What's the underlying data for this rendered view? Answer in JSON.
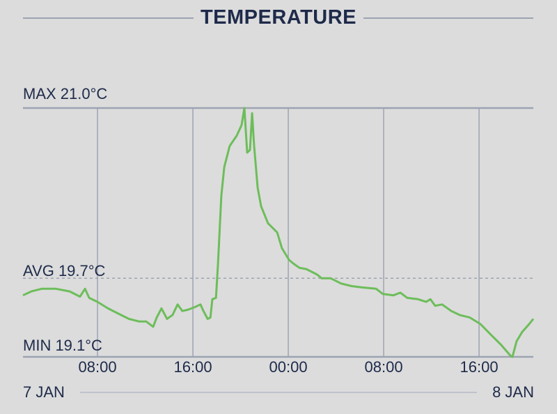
{
  "chart_data": {
    "type": "line",
    "title": "TEMPERATURE",
    "unit": "°C",
    "xlim": [
      "7 JAN 01:45",
      "8 JAN 20:33"
    ],
    "ylim": [
      19.1,
      21.0
    ],
    "grid": "vertical",
    "x_ticks": [
      {
        "t": "7 JAN 08:00",
        "label": "08:00"
      },
      {
        "t": "7 JAN 16:00",
        "label": "16:00"
      },
      {
        "t": "8 JAN 00:00",
        "label": "00:00"
      },
      {
        "t": "8 JAN 08:00",
        "label": "08:00"
      },
      {
        "t": "8 JAN 16:00",
        "label": "16:00"
      }
    ],
    "date_labels": {
      "start": "7 JAN",
      "end": "8 JAN"
    },
    "reference_lines": {
      "max": {
        "label": "MAX 21.0°C",
        "value": 21.0
      },
      "avg": {
        "label": "AVG 19.7°C",
        "value": 19.7
      },
      "min": {
        "label": "MIN 19.1°C",
        "value": 19.1
      }
    },
    "colors": {
      "line": "#6dbd5a",
      "text": "#1e2a4a",
      "grid": "#9ea3b3",
      "background": "#dcdcdc"
    },
    "series": [
      {
        "points": [
          [
            "7 JAN 01:45",
            19.57
          ],
          [
            "7 JAN 02:27",
            19.6
          ],
          [
            "7 JAN 03:20",
            19.62
          ],
          [
            "7 JAN 04:30",
            19.62
          ],
          [
            "7 JAN 05:40",
            19.6
          ],
          [
            "7 JAN 06:32",
            19.56
          ],
          [
            "7 JAN 06:57",
            19.62
          ],
          [
            "7 JAN 07:18",
            19.55
          ],
          [
            "7 JAN 08:00",
            19.52
          ],
          [
            "7 JAN 08:53",
            19.47
          ],
          [
            "7 JAN 09:45",
            19.43
          ],
          [
            "7 JAN 10:38",
            19.39
          ],
          [
            "7 JAN 11:30",
            19.37
          ],
          [
            "7 JAN 12:05",
            19.37
          ],
          [
            "7 JAN 12:40",
            19.33
          ],
          [
            "7 JAN 12:58",
            19.4
          ],
          [
            "7 JAN 13:22",
            19.47
          ],
          [
            "7 JAN 13:50",
            19.39
          ],
          [
            "7 JAN 14:18",
            19.42
          ],
          [
            "7 JAN 14:43",
            19.5
          ],
          [
            "7 JAN 15:07",
            19.45
          ],
          [
            "7 JAN 15:35",
            19.46
          ],
          [
            "7 JAN 16:10",
            19.48
          ],
          [
            "7 JAN 16:38",
            19.5
          ],
          [
            "7 JAN 16:53",
            19.45
          ],
          [
            "7 JAN 17:14",
            19.39
          ],
          [
            "7 JAN 17:28",
            19.4
          ],
          [
            "7 JAN 17:38",
            19.54
          ],
          [
            "7 JAN 17:56",
            19.55
          ],
          [
            "7 JAN 18:06",
            19.8
          ],
          [
            "7 JAN 18:23",
            20.33
          ],
          [
            "7 JAN 18:38",
            20.55
          ],
          [
            "7 JAN 19:05",
            20.71
          ],
          [
            "7 JAN 19:41",
            20.79
          ],
          [
            "7 JAN 20:05",
            20.87
          ],
          [
            "7 JAN 20:19",
            21.0
          ],
          [
            "7 JAN 20:33",
            20.66
          ],
          [
            "7 JAN 20:47",
            20.68
          ],
          [
            "7 JAN 20:58",
            20.96
          ],
          [
            "7 JAN 21:08",
            20.71
          ],
          [
            "7 JAN 21:26",
            20.39
          ],
          [
            "7 JAN 21:43",
            20.25
          ],
          [
            "7 JAN 22:18",
            20.12
          ],
          [
            "7 JAN 23:04",
            20.05
          ],
          [
            "7 JAN 23:28",
            19.93
          ],
          [
            "8 JAN 00:04",
            19.84
          ],
          [
            "8 JAN 00:28",
            19.81
          ],
          [
            "8 JAN 00:56",
            19.78
          ],
          [
            "8 JAN 01:31",
            19.77
          ],
          [
            "8 JAN 02:23",
            19.73
          ],
          [
            "8 JAN 02:48",
            19.7
          ],
          [
            "8 JAN 03:34",
            19.7
          ],
          [
            "8 JAN 04:26",
            19.66
          ],
          [
            "8 JAN 05:19",
            19.64
          ],
          [
            "8 JAN 06:11",
            19.63
          ],
          [
            "8 JAN 07:22",
            19.62
          ],
          [
            "8 JAN 07:56",
            19.58
          ],
          [
            "8 JAN 08:49",
            19.57
          ],
          [
            "8 JAN 09:24",
            19.59
          ],
          [
            "8 JAN 09:59",
            19.55
          ],
          [
            "8 JAN 10:52",
            19.54
          ],
          [
            "8 JAN 11:34",
            19.52
          ],
          [
            "8 JAN 11:55",
            19.54
          ],
          [
            "8 JAN 12:19",
            19.49
          ],
          [
            "8 JAN 12:54",
            19.5
          ],
          [
            "8 JAN 13:40",
            19.45
          ],
          [
            "8 JAN 14:22",
            19.42
          ],
          [
            "8 JAN 15:14",
            19.4
          ],
          [
            "8 JAN 16:07",
            19.35
          ],
          [
            "8 JAN 16:59",
            19.27
          ],
          [
            "8 JAN 17:52",
            19.19
          ],
          [
            "8 JAN 18:37",
            19.11
          ],
          [
            "8 JAN 18:48",
            19.1
          ],
          [
            "8 JAN 19:09",
            19.22
          ],
          [
            "8 JAN 19:37",
            19.29
          ],
          [
            "8 JAN 20:12",
            19.35
          ],
          [
            "8 JAN 20:33",
            19.39
          ]
        ]
      }
    ]
  }
}
